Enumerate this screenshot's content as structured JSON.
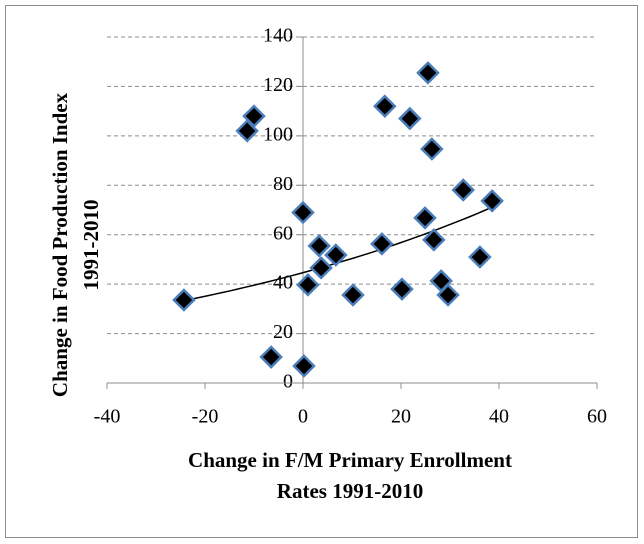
{
  "chart_data": {
    "type": "scatter",
    "x_label_lines": [
      "Change in F/M Primary Enrollment",
      "Rates 1991-2010"
    ],
    "y_label_lines": [
      "Change in Food Production Index",
      "1991-2010"
    ],
    "xlim": [
      -40,
      60
    ],
    "xticks": [
      -40,
      -20,
      0,
      20,
      40,
      60
    ],
    "ylim": [
      0,
      140
    ],
    "yticks": [
      0,
      20,
      40,
      60,
      80,
      100,
      120,
      140
    ],
    "grid": true,
    "trendline": "exponential",
    "marker_fill": "#000000",
    "marker_stroke": "#4a7ebb",
    "trend_color": "#000000",
    "series": [
      {
        "x": [
          -24.3,
          -6.5,
          0.2,
          -11.4,
          -10,
          0,
          1,
          3.3,
          3.7,
          6.7,
          10.2,
          16.1,
          16.7,
          20.2,
          21.8,
          24.9,
          25.5,
          26.3,
          26.7,
          28.2,
          29.6,
          32.7,
          36.1,
          38.6
        ],
        "values": [
          33.6,
          10.5,
          6.9,
          102,
          108,
          69,
          39.7,
          55.5,
          46.6,
          51.8,
          35.6,
          56.3,
          112,
          38,
          107,
          66.8,
          125.5,
          94.7,
          57.9,
          41.3,
          35.6,
          78.1,
          51,
          73.7
        ]
      }
    ]
  }
}
